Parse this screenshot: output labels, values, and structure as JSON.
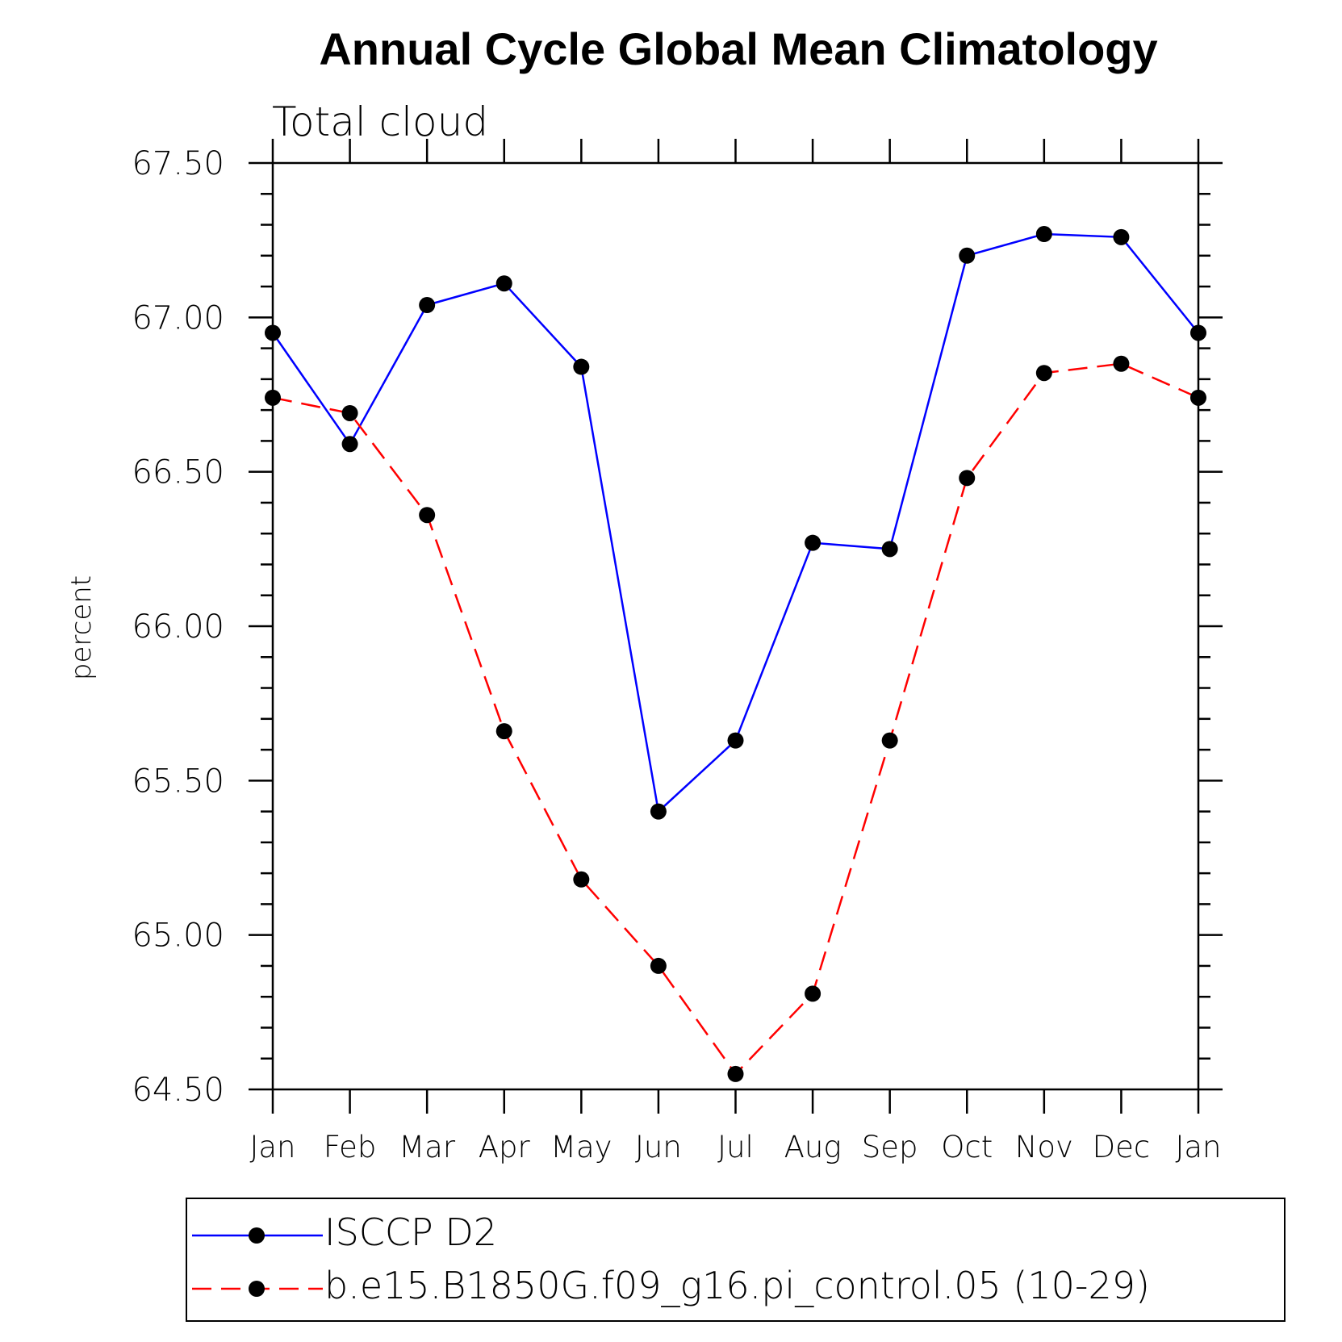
{
  "chart_data": {
    "type": "line",
    "title": "Annual Cycle Global Mean Climatology",
    "subtitle": "Total cloud",
    "xlabel": "",
    "ylabel": "percent",
    "categories": [
      "Jan",
      "Feb",
      "Mar",
      "Apr",
      "May",
      "Jun",
      "Jul",
      "Aug",
      "Sep",
      "Oct",
      "Nov",
      "Dec",
      "Jan"
    ],
    "ylim": [
      64.5,
      67.5
    ],
    "yticks": [
      "64.50",
      "65.00",
      "65.50",
      "66.00",
      "66.50",
      "67.00",
      "67.50"
    ],
    "grid": false,
    "legend_position": "bottom",
    "series": [
      {
        "name": "ISCCP D2",
        "color": "#0000ff",
        "line_style": "solid",
        "marker": "filled-circle",
        "values": [
          66.95,
          66.59,
          67.04,
          67.11,
          66.84,
          65.4,
          65.63,
          66.27,
          66.25,
          67.2,
          67.27,
          67.26,
          66.95
        ]
      },
      {
        "name": "b.e15.B1850G.f09_g16.pi_control.05 (10-29)",
        "color": "#ff0000",
        "line_style": "dashed",
        "marker": "filled-circle",
        "values": [
          66.74,
          66.69,
          66.36,
          65.66,
          65.18,
          64.9,
          64.55,
          64.81,
          65.63,
          66.48,
          66.82,
          66.85,
          66.74
        ]
      }
    ]
  }
}
